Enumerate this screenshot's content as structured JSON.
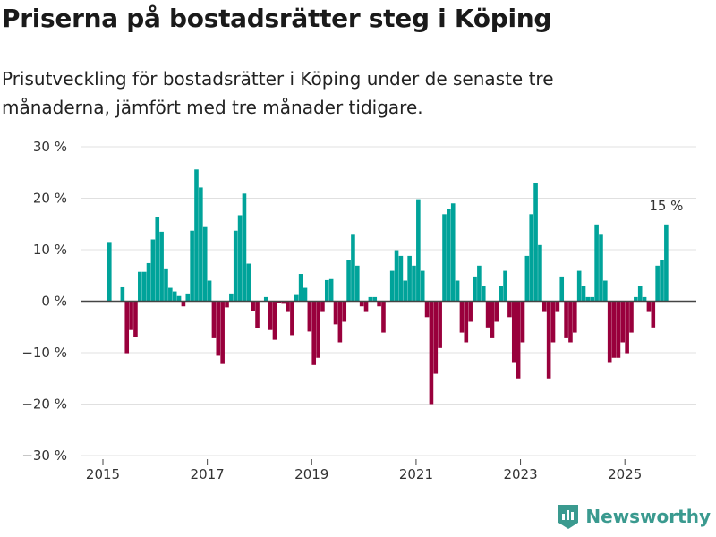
{
  "title": "Priserna på bostadsrätter steg i Köping",
  "subtitle": "Prisutveckling för bostadsrätter i Köping under de senaste tre månaderna, jämfört med tre månader tidigare.",
  "brand": "Newsworthy",
  "colors": {
    "positive": "#00a39a",
    "negative": "#99003c",
    "grid": "#e0e0e0",
    "axis": "#444444"
  },
  "chart_data": {
    "type": "bar",
    "title": "Priserna på bostadsrätter steg i Köping",
    "xlabel": "",
    "ylabel": "",
    "ylim": [
      -30,
      30
    ],
    "y_ticks": [
      30,
      20,
      10,
      0,
      -10,
      -20,
      -30
    ],
    "y_tick_labels": [
      "30 %",
      "20 %",
      "10 %",
      "0 %",
      "−10 %",
      "−20 %",
      "−30 %"
    ],
    "x_ticks": [
      "2015",
      "2017",
      "2019",
      "2021",
      "2023",
      "2025"
    ],
    "start_month": "2015-02",
    "frequency": "monthly",
    "unit": "%",
    "annotation": "15 %",
    "values": [
      11.5,
      0,
      0,
      2.7,
      -10.1,
      -5.6,
      -7.0,
      5.7,
      5.7,
      7.4,
      12.0,
      16.3,
      13.5,
      6.2,
      2.6,
      1.9,
      1.0,
      -1.0,
      1.5,
      13.7,
      25.6,
      22.1,
      14.4,
      4.0,
      -7.2,
      -10.6,
      -12.2,
      -1.2,
      1.5,
      13.7,
      16.7,
      20.9,
      7.3,
      -1.9,
      -5.2,
      0,
      0.8,
      -5.6,
      -7.5,
      -0.3,
      -0.5,
      -2.1,
      -6.6,
      1.2,
      5.3,
      2.6,
      -5.9,
      -12.4,
      -11.0,
      -2.1,
      4.1,
      4.3,
      -4.5,
      -8.0,
      -4.0,
      8.0,
      12.9,
      6.9,
      -1.0,
      -2.1,
      0.8,
      0.8,
      -1.0,
      -6.1,
      0,
      5.9,
      9.9,
      8.8,
      4.0,
      8.8,
      6.9,
      19.8,
      5.9,
      -3.1,
      -20,
      -14.1,
      -9.1,
      16.9,
      17.9,
      19.0,
      4.0,
      -6.1,
      -8.0,
      -4.0,
      4.8,
      6.9,
      2.9,
      -5.1,
      -7.2,
      -4.0,
      2.9,
      5.9,
      -3.1,
      -12.0,
      -15.0,
      -8.0,
      8.8,
      16.9,
      23.0,
      10.9,
      -2.1,
      -15,
      -8.0,
      -2.1,
      4.8,
      -7.2,
      -8.0,
      -6.1,
      5.9,
      2.9,
      0.8,
      0.8,
      14.9,
      12.9,
      4.0,
      -12.0,
      -11.0,
      -11.0,
      -8.0,
      -10.1,
      -6.1,
      0.8,
      2.9,
      0.8,
      -2.1,
      -5.1,
      6.9,
      8.0,
      14.9
    ]
  }
}
